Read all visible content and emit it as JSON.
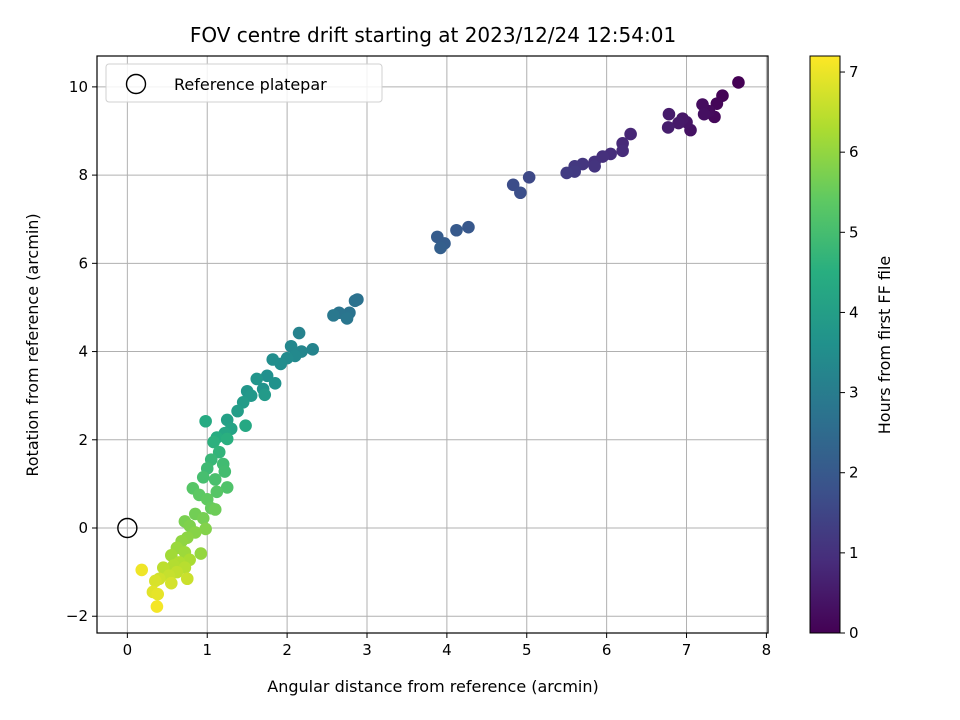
{
  "chart_data": {
    "type": "scatter",
    "title": "FOV centre drift starting at 2023/12/24 12:54:01",
    "xlabel": "Angular distance from reference (arcmin)",
    "ylabel": "Rotation from reference (arcmin)",
    "xlim": [
      -0.38,
      8.02
    ],
    "ylim": [
      -2.38,
      10.7
    ],
    "x_ticks": [
      0,
      1,
      2,
      3,
      4,
      5,
      6,
      7,
      8
    ],
    "y_ticks": [
      -2,
      0,
      2,
      4,
      6,
      8,
      10
    ],
    "grid": true,
    "legend": {
      "position": "top-left",
      "entries": [
        "Reference platepar"
      ]
    },
    "reference_point": {
      "x": 0,
      "y": 0,
      "label": "Reference platepar"
    },
    "colorbar": {
      "label": "Hours from first FF file",
      "range": [
        0,
        7.2
      ],
      "ticks": [
        0,
        1,
        2,
        3,
        4,
        5,
        6,
        7
      ],
      "colormap": "viridis"
    },
    "points": [
      {
        "x": 7.65,
        "y": 10.1,
        "c": 0.0
      },
      {
        "x": 7.45,
        "y": 9.8,
        "c": 0.05
      },
      {
        "x": 7.38,
        "y": 9.62,
        "c": 0.1
      },
      {
        "x": 7.35,
        "y": 9.32,
        "c": 0.15
      },
      {
        "x": 7.28,
        "y": 9.45,
        "c": 0.2
      },
      {
        "x": 7.2,
        "y": 9.6,
        "c": 0.25
      },
      {
        "x": 7.22,
        "y": 9.38,
        "c": 0.3
      },
      {
        "x": 7.05,
        "y": 9.02,
        "c": 0.35
      },
      {
        "x": 7.0,
        "y": 9.2,
        "c": 0.4
      },
      {
        "x": 6.95,
        "y": 9.28,
        "c": 0.45
      },
      {
        "x": 6.9,
        "y": 9.18,
        "c": 0.5
      },
      {
        "x": 6.78,
        "y": 9.38,
        "c": 0.55
      },
      {
        "x": 6.77,
        "y": 9.08,
        "c": 0.6
      },
      {
        "x": 6.3,
        "y": 8.93,
        "c": 0.8
      },
      {
        "x": 6.2,
        "y": 8.72,
        "c": 0.85
      },
      {
        "x": 6.2,
        "y": 8.55,
        "c": 0.9
      },
      {
        "x": 6.05,
        "y": 8.48,
        "c": 0.95
      },
      {
        "x": 5.95,
        "y": 8.42,
        "c": 1.0
      },
      {
        "x": 5.85,
        "y": 8.3,
        "c": 1.05
      },
      {
        "x": 5.85,
        "y": 8.2,
        "c": 1.1
      },
      {
        "x": 5.7,
        "y": 8.25,
        "c": 1.15
      },
      {
        "x": 5.6,
        "y": 8.2,
        "c": 1.2
      },
      {
        "x": 5.6,
        "y": 8.08,
        "c": 1.25
      },
      {
        "x": 5.5,
        "y": 8.05,
        "c": 1.3
      },
      {
        "x": 5.03,
        "y": 7.95,
        "c": 1.6
      },
      {
        "x": 4.83,
        "y": 7.78,
        "c": 1.7
      },
      {
        "x": 4.92,
        "y": 7.6,
        "c": 1.75
      },
      {
        "x": 4.27,
        "y": 6.82,
        "c": 2.0
      },
      {
        "x": 4.12,
        "y": 6.75,
        "c": 2.05
      },
      {
        "x": 3.88,
        "y": 6.6,
        "c": 2.1
      },
      {
        "x": 3.97,
        "y": 6.45,
        "c": 2.15
      },
      {
        "x": 3.92,
        "y": 6.35,
        "c": 2.2
      },
      {
        "x": 2.88,
        "y": 5.18,
        "c": 2.7
      },
      {
        "x": 2.85,
        "y": 5.15,
        "c": 2.72
      },
      {
        "x": 2.78,
        "y": 4.88,
        "c": 2.75
      },
      {
        "x": 2.65,
        "y": 4.88,
        "c": 2.8
      },
      {
        "x": 2.75,
        "y": 4.75,
        "c": 2.85
      },
      {
        "x": 2.58,
        "y": 4.82,
        "c": 2.9
      },
      {
        "x": 2.15,
        "y": 4.42,
        "c": 3.2
      },
      {
        "x": 2.32,
        "y": 4.05,
        "c": 3.25
      },
      {
        "x": 2.18,
        "y": 4.0,
        "c": 3.3
      },
      {
        "x": 2.05,
        "y": 4.12,
        "c": 3.35
      },
      {
        "x": 2.1,
        "y": 3.9,
        "c": 3.4
      },
      {
        "x": 2.0,
        "y": 3.85,
        "c": 3.45
      },
      {
        "x": 1.92,
        "y": 3.72,
        "c": 3.5
      },
      {
        "x": 1.82,
        "y": 3.82,
        "c": 3.55
      },
      {
        "x": 1.75,
        "y": 3.45,
        "c": 3.6
      },
      {
        "x": 1.85,
        "y": 3.28,
        "c": 3.65
      },
      {
        "x": 1.7,
        "y": 3.15,
        "c": 3.7
      },
      {
        "x": 1.62,
        "y": 3.38,
        "c": 3.75
      },
      {
        "x": 1.5,
        "y": 3.1,
        "c": 3.8
      },
      {
        "x": 1.55,
        "y": 3.0,
        "c": 3.85
      },
      {
        "x": 1.72,
        "y": 3.02,
        "c": 3.9
      },
      {
        "x": 1.45,
        "y": 2.85,
        "c": 3.95
      },
      {
        "x": 1.38,
        "y": 2.65,
        "c": 4.0
      },
      {
        "x": 1.25,
        "y": 2.45,
        "c": 4.1
      },
      {
        "x": 1.3,
        "y": 2.25,
        "c": 4.2
      },
      {
        "x": 1.22,
        "y": 2.15,
        "c": 4.3
      },
      {
        "x": 1.48,
        "y": 2.32,
        "c": 4.35
      },
      {
        "x": 0.98,
        "y": 2.42,
        "c": 4.4
      },
      {
        "x": 1.12,
        "y": 2.05,
        "c": 4.5
      },
      {
        "x": 1.25,
        "y": 2.02,
        "c": 4.55
      },
      {
        "x": 1.08,
        "y": 1.95,
        "c": 4.6
      },
      {
        "x": 1.15,
        "y": 1.72,
        "c": 4.7
      },
      {
        "x": 1.05,
        "y": 1.55,
        "c": 4.8
      },
      {
        "x": 1.0,
        "y": 1.35,
        "c": 4.9
      },
      {
        "x": 1.2,
        "y": 1.45,
        "c": 4.95
      },
      {
        "x": 1.22,
        "y": 1.28,
        "c": 5.0
      },
      {
        "x": 0.95,
        "y": 1.15,
        "c": 5.05
      },
      {
        "x": 1.1,
        "y": 1.1,
        "c": 5.1
      },
      {
        "x": 1.25,
        "y": 0.92,
        "c": 5.2
      },
      {
        "x": 1.12,
        "y": 0.82,
        "c": 5.3
      },
      {
        "x": 0.82,
        "y": 0.9,
        "c": 5.3
      },
      {
        "x": 0.9,
        "y": 0.75,
        "c": 5.4
      },
      {
        "x": 1.0,
        "y": 0.65,
        "c": 5.45
      },
      {
        "x": 1.05,
        "y": 0.45,
        "c": 5.5
      },
      {
        "x": 1.1,
        "y": 0.42,
        "c": 5.6
      },
      {
        "x": 0.85,
        "y": 0.32,
        "c": 5.65
      },
      {
        "x": 0.95,
        "y": 0.22,
        "c": 5.7
      },
      {
        "x": 0.72,
        "y": 0.15,
        "c": 5.75
      },
      {
        "x": 0.78,
        "y": 0.05,
        "c": 5.8
      },
      {
        "x": 0.98,
        "y": -0.02,
        "c": 5.85
      },
      {
        "x": 0.85,
        "y": -0.1,
        "c": 5.9
      },
      {
        "x": 0.75,
        "y": -0.22,
        "c": 5.95
      },
      {
        "x": 0.68,
        "y": -0.3,
        "c": 6.0
      },
      {
        "x": 0.92,
        "y": -0.58,
        "c": 6.05
      },
      {
        "x": 0.62,
        "y": -0.45,
        "c": 6.1
      },
      {
        "x": 0.72,
        "y": -0.55,
        "c": 6.15
      },
      {
        "x": 0.55,
        "y": -0.62,
        "c": 6.2
      },
      {
        "x": 0.78,
        "y": -0.72,
        "c": 6.3
      },
      {
        "x": 0.65,
        "y": -0.78,
        "c": 6.35
      },
      {
        "x": 0.58,
        "y": -0.85,
        "c": 6.4
      },
      {
        "x": 0.72,
        "y": -0.9,
        "c": 6.45
      },
      {
        "x": 0.45,
        "y": -0.9,
        "c": 6.5
      },
      {
        "x": 0.62,
        "y": -1.0,
        "c": 6.55
      },
      {
        "x": 0.52,
        "y": -1.08,
        "c": 6.6
      },
      {
        "x": 0.75,
        "y": -1.15,
        "c": 6.65
      },
      {
        "x": 0.4,
        "y": -1.15,
        "c": 6.7
      },
      {
        "x": 0.55,
        "y": -1.25,
        "c": 6.75
      },
      {
        "x": 0.35,
        "y": -1.2,
        "c": 6.8
      },
      {
        "x": 0.32,
        "y": -1.45,
        "c": 6.9
      },
      {
        "x": 0.38,
        "y": -1.5,
        "c": 6.95
      },
      {
        "x": 0.18,
        "y": -0.95,
        "c": 7.05
      },
      {
        "x": 0.37,
        "y": -1.78,
        "c": 7.1
      }
    ]
  }
}
